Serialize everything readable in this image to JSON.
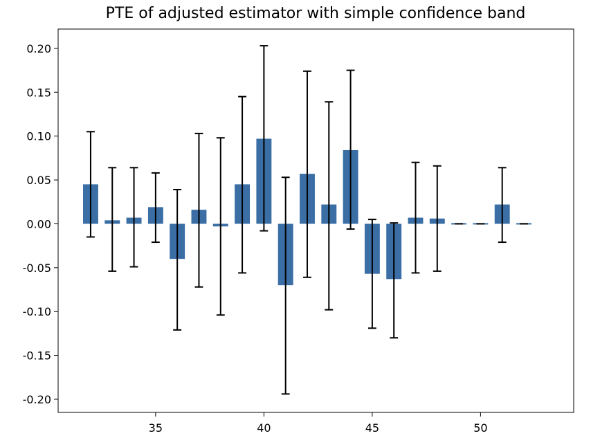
{
  "chart_data": {
    "type": "bar",
    "title": "PTE of adjusted estimator with simple confidence band",
    "xlabel": "",
    "ylabel": "",
    "xlim": [
      30.5,
      54.3
    ],
    "ylim": [
      -0.215,
      0.222
    ],
    "xticks": [
      35,
      40,
      45,
      50
    ],
    "yticks": [
      -0.2,
      -0.15,
      -0.1,
      -0.05,
      0.0,
      0.05,
      0.1,
      0.15,
      0.2
    ],
    "bar_color": "#3a6ea5",
    "errorbar_color": "#000000",
    "grid": false,
    "series": [
      {
        "x": [
          32,
          33,
          34,
          35,
          36,
          37,
          38,
          39,
          40,
          41,
          42,
          43,
          44,
          45,
          46,
          47,
          48,
          49,
          50,
          51,
          52
        ],
        "values": [
          0.045,
          0.004,
          0.007,
          0.019,
          -0.04,
          0.016,
          -0.003,
          0.045,
          0.097,
          -0.07,
          0.057,
          0.022,
          0.084,
          -0.057,
          -0.063,
          0.007,
          0.006,
          0.0,
          0.0,
          0.022,
          0.0
        ],
        "lower": [
          -0.015,
          -0.054,
          -0.049,
          -0.021,
          -0.121,
          -0.072,
          -0.104,
          -0.056,
          -0.008,
          -0.194,
          -0.061,
          -0.098,
          -0.006,
          -0.119,
          -0.13,
          -0.056,
          -0.054,
          0.0,
          0.0,
          -0.021,
          0.0
        ],
        "upper": [
          0.105,
          0.064,
          0.064,
          0.058,
          0.039,
          0.103,
          0.098,
          0.145,
          0.203,
          0.053,
          0.174,
          0.139,
          0.175,
          0.005,
          0.001,
          0.07,
          0.066,
          0.0,
          0.0,
          0.064,
          0.0
        ]
      }
    ]
  }
}
